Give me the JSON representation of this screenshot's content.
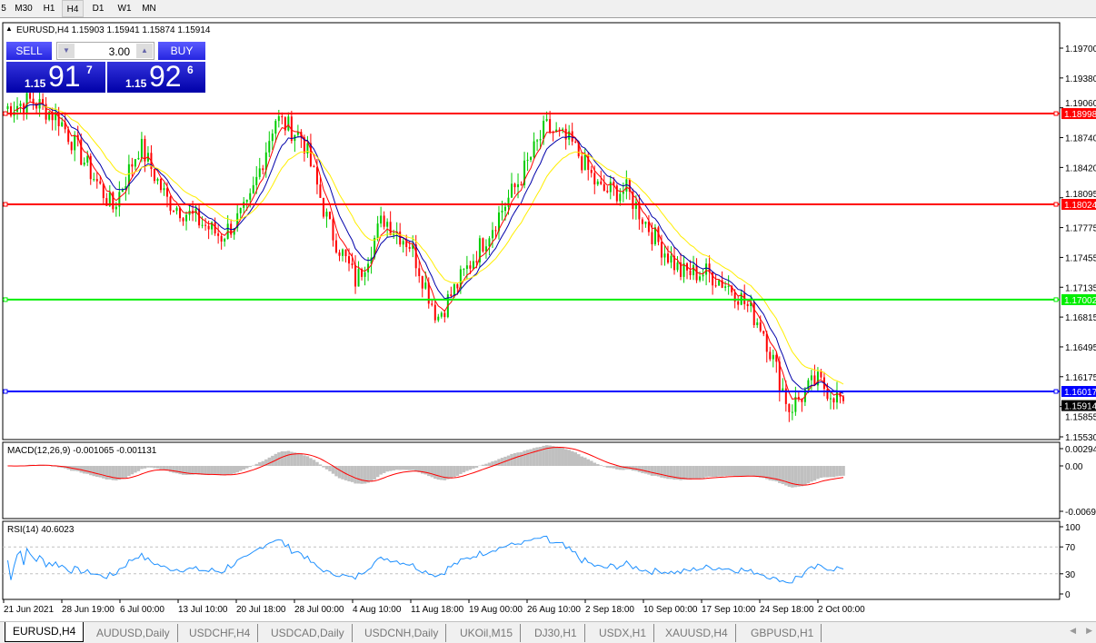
{
  "timeframes": [
    "5",
    "M30",
    "H1",
    "H4",
    "D1",
    "W1",
    "MN"
  ],
  "active_timeframe": "H4",
  "chart": {
    "header": "EURUSD,H4  1.15903 1.15941 1.15874 1.15914",
    "trade_panel": {
      "sell_label": "SELL",
      "buy_label": "BUY",
      "lot": "3.00",
      "sell_small": "1.15",
      "sell_large": "91",
      "sell_pip": "7",
      "buy_small": "1.15",
      "buy_large": "92",
      "buy_pip": "6"
    },
    "price_axis": [
      "1.19700",
      "1.19380",
      "1.19060",
      "1.18740",
      "1.18420",
      "1.18095",
      "1.17775",
      "1.17455",
      "1.17135",
      "1.16815",
      "1.16495",
      "1.16175",
      "1.15855",
      "1.15530"
    ],
    "hlines": [
      {
        "price": 1.18998,
        "label": "1.18998",
        "color": "#ff0000"
      },
      {
        "price": 1.18024,
        "label": "1.18024",
        "color": "#ff0000"
      },
      {
        "price": 1.17002,
        "label": "1.17002",
        "color": "#00ee00"
      },
      {
        "price": 1.16017,
        "label": "1.16017",
        "color": "#0000ff"
      }
    ],
    "current_price": {
      "price": 1.15914,
      "label": "1.15914"
    },
    "colors": {
      "bull": "#00cc00",
      "bear": "#ff0000",
      "ma_fast": "#ff0000",
      "ma_mid": "#0000aa",
      "ma_slow": "#ffee00",
      "rsi": "#1e90ff",
      "macd_hist": "#c0c0c0",
      "macd_signal": "#ff0000"
    },
    "macd_label": "MACD(12,26,9) -0.001065 -0.001131",
    "macd_axis": [
      "0.00294",
      "0.00",
      "-0.00699"
    ],
    "rsi_label": "RSI(14) 40.6023",
    "rsi_axis": [
      "100",
      "70",
      "30",
      "0"
    ],
    "time_axis": [
      "21 Jun 2021",
      "28 Jun 19:00",
      "6 Jul 00:00",
      "13 Jul 10:00",
      "20 Jul 18:00",
      "28 Jul 00:00",
      "4 Aug 10:00",
      "11 Aug 18:00",
      "19 Aug 00:00",
      "26 Aug 10:00",
      "2 Sep 18:00",
      "10 Sep 00:00",
      "17 Sep 10:00",
      "24 Sep 18:00",
      "2 Oct 00:00"
    ]
  },
  "chart_data": {
    "type": "candlestick",
    "symbol": "EURUSD",
    "timeframe": "H4",
    "approx_close_path": [
      1.1905,
      1.1914,
      1.1895,
      1.1846,
      1.1798,
      1.1866,
      1.1807,
      1.1788,
      1.1768,
      1.1798,
      1.1895,
      1.1875,
      1.1778,
      1.1719,
      1.1788,
      1.1759,
      1.1681,
      1.1729,
      1.1778,
      1.1827,
      1.1885,
      1.1866,
      1.1817,
      1.1817,
      1.1768,
      1.1729,
      1.1729,
      1.171,
      1.1671,
      1.1583,
      1.1613,
      1.15914
    ],
    "ylim": [
      1.1553,
      1.197
    ]
  },
  "tabs": [
    "EURUSD,H4",
    "AUDUSD,Daily",
    "USDCHF,H4",
    "USDCAD,Daily",
    "USDCNH,Daily",
    "UKOil,M15",
    "DJ30,H1",
    "USDX,H1",
    "XAUUSD,H4",
    "GBPUSD,H1"
  ]
}
